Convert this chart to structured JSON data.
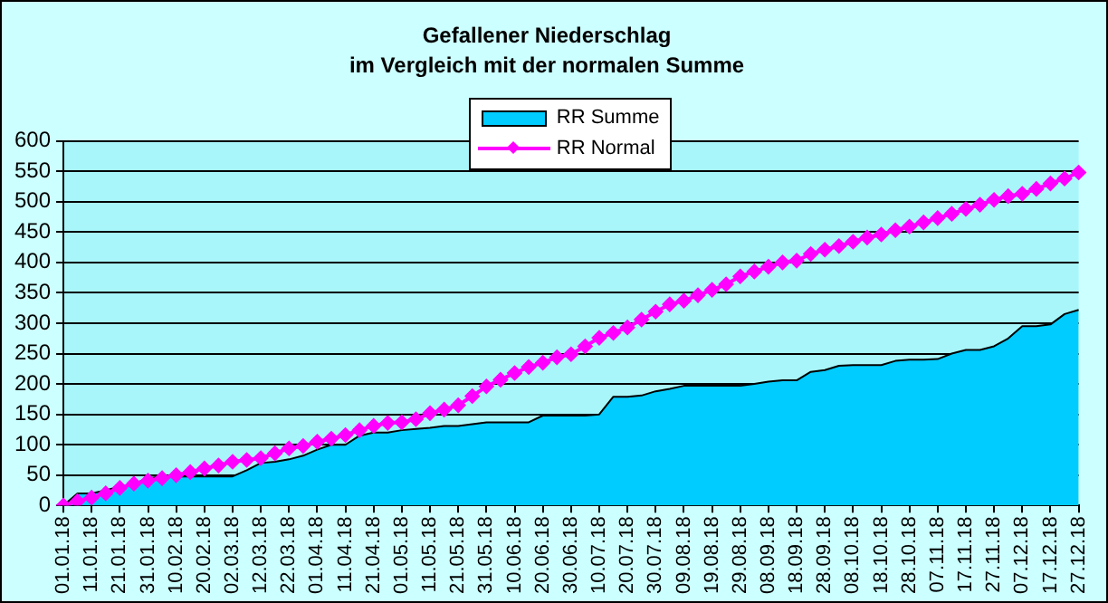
{
  "chart_data": {
    "type": "area",
    "title": "Gefallener Niederschlag",
    "subtitle": "im Vergleich mit der normalen Summe",
    "categories": [
      "01.01.18",
      null,
      "11.01.18",
      null,
      "21.01.18",
      null,
      "31.01.18",
      null,
      "10.02.18",
      null,
      "20.02.18",
      null,
      "02.03.18",
      null,
      "12.03.18",
      null,
      "22.03.18",
      null,
      "01.04.18",
      null,
      "11.04.18",
      null,
      "21.04.18",
      null,
      "01.05.18",
      null,
      "11.05.18",
      null,
      "21.05.18",
      null,
      "31.05.18",
      null,
      "10.06.18",
      null,
      "20.06.18",
      null,
      "30.06.18",
      null,
      "10.07.18",
      null,
      "20.07.18",
      null,
      "30.07.18",
      null,
      "09.08.18",
      null,
      "19.08.18",
      null,
      "29.08.18",
      null,
      "08.09.18",
      null,
      "18.09.18",
      null,
      "28.09.18",
      null,
      "08.10.18",
      null,
      "18.10.18",
      null,
      "28.10.18",
      null,
      "07.11.18",
      null,
      "17.11.18",
      null,
      "27.11.18",
      null,
      "07.12.18",
      null,
      "17.12.18",
      null,
      "27.12.18"
    ],
    "series": [
      {
        "name": "RR Summe",
        "color": "#00ccff",
        "values": [
          0,
          20,
          20,
          25,
          31,
          36,
          45,
          48,
          48,
          48,
          48,
          48,
          48,
          58,
          70,
          72,
          76,
          82,
          92,
          100,
          100,
          115,
          120,
          120,
          124,
          126,
          128,
          131,
          131,
          134,
          137,
          137,
          137,
          137,
          148,
          148,
          148,
          148,
          150,
          179,
          179,
          181,
          188,
          192,
          197,
          197,
          197,
          197,
          197,
          200,
          204,
          206,
          206,
          220,
          223,
          230,
          231,
          231,
          231,
          238,
          240,
          240,
          241,
          250,
          256,
          256,
          262,
          275,
          295,
          295,
          298,
          315,
          322
        ]
      },
      {
        "name": "RR Normal",
        "type": "line",
        "color": "#ff00ff",
        "marker": "diamond",
        "values": [
          0,
          7,
          13,
          20,
          29,
          36,
          41,
          45,
          50,
          55,
          61,
          66,
          72,
          75,
          78,
          86,
          94,
          98,
          105,
          110,
          116,
          124,
          131,
          136,
          137,
          142,
          152,
          158,
          165,
          180,
          196,
          207,
          218,
          228,
          235,
          244,
          249,
          262,
          276,
          284,
          293,
          306,
          319,
          331,
          337,
          346,
          355,
          364,
          377,
          385,
          393,
          400,
          403,
          414,
          421,
          427,
          434,
          441,
          446,
          453,
          459,
          466,
          473,
          480,
          488,
          495,
          503,
          509,
          513,
          521,
          530,
          538,
          548
        ]
      }
    ],
    "ylim": [
      0,
      600
    ],
    "yticks": [
      0,
      50,
      100,
      150,
      200,
      250,
      300,
      350,
      400,
      450,
      500,
      550,
      600
    ],
    "grid": "y",
    "legend": "top"
  }
}
